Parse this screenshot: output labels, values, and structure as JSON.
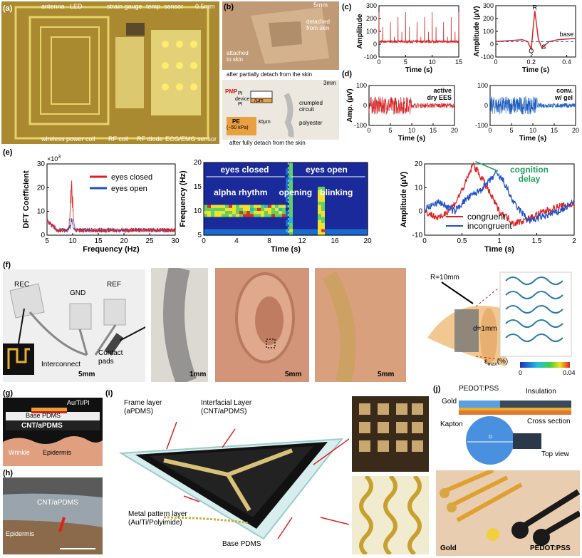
{
  "panel_a": {
    "label": "(a)",
    "callouts": [
      "antenna",
      "LED",
      "strain gauge",
      "temp. sensor",
      "0.5mm",
      "wireless power coil",
      "RF coil",
      "RF diode",
      "ECG/EMG sensor"
    ]
  },
  "panel_b": {
    "label": "(b)",
    "scale_top": "5mm",
    "detached": "detached\nfrom skin",
    "attached": "attached\nto skin",
    "caption_top": "after partially detach from the skin",
    "scale_bot": "3mm",
    "pmp": "PMP",
    "pi_top": "PI",
    "device": "device",
    "pi_bot": "PI",
    "t7": "7μm",
    "t30": "30μm",
    "pe": "PE",
    "pe_mod": "(~50 kPa)",
    "crumpled": "crumpled\ncircuit",
    "polyester": "polyester",
    "caption_bot": "after fully detach from the skin"
  },
  "panel_c": {
    "label": "(c)"
  },
  "panel_d": {
    "label": "(d)",
    "left_note": "active\ndry EES",
    "right_note": "conv.\nw/ gel"
  },
  "panel_e": {
    "label": "(e)",
    "spec_title": "",
    "spec_lbl_closed": "eyes closed",
    "spec_lbl_open": "eyes open",
    "spec_alpha": "alpha rhythm",
    "spec_opening": "opening",
    "spec_blinking": "blinking",
    "erp_annot": "cognition\ndelay"
  },
  "panel_f": {
    "label": "(f)",
    "rec": "REC",
    "gnd": "GND",
    "ref": "REF",
    "contact": "Contact\npads",
    "interconnect": "Interconnect",
    "s1": "5mm",
    "s2": "1mm",
    "s3": "5mm",
    "s4": "5mm",
    "r": "R=10mm",
    "d": "d=1mm",
    "emax": "ε",
    "emax_sub": "max",
    "emax_unit": "(%)",
    "cb_min": "0",
    "cb_max": "0.04"
  },
  "panel_g": {
    "label": "(g)",
    "base": "Base PDMS",
    "metal": "Au/Ti/PI",
    "cnt": "CNT/aPDMS",
    "wrinkle": "Wrinkle",
    "epidermis": "Epidermis"
  },
  "panel_h": {
    "label": "(h)",
    "cnt": "CNT/aPDMS",
    "epidermis": "Epidermis"
  },
  "panel_i": {
    "label": "(i)",
    "frame": "Frame layer\n(aPDMS)",
    "interfacial": "Interfacial Layer\n(CNT/aPDMS)",
    "metal": "Metal pattern layer\n(Au/Ti/Polyimide)",
    "base": "Base PDMS"
  },
  "panel_j": {
    "label": "(j)",
    "pedot": "PEDOT:PSS",
    "insulation": "Insulation",
    "gold": "Gold",
    "kapton": "Kapton",
    "cross": "Cross section",
    "top": "Top view",
    "diam": "D",
    "photo_gold": "Gold",
    "photo_pedot": "PEDOT:PSS"
  },
  "chart_data": [
    {
      "id": "c_left",
      "type": "line",
      "title": "",
      "xlabel": "Time (s)",
      "ylabel": "Amplitude",
      "xlim": [
        0,
        15
      ],
      "ylim": [
        -100,
        300
      ],
      "xticks": [
        0,
        5,
        10,
        15
      ],
      "yticks": [
        -100,
        0,
        100,
        200,
        300
      ],
      "series": [
        {
          "color": "#d62728",
          "peaks_per_15s": 21,
          "peak_value": 250,
          "baseline": 20
        }
      ]
    },
    {
      "id": "c_right",
      "type": "line",
      "title": "",
      "xlabel": "Time (s)",
      "ylabel": "Amplitude (μV)",
      "xlim": [
        0,
        0.45
      ],
      "ylim": [
        -100,
        300
      ],
      "xticks": [
        0.0,
        0.2,
        0.4
      ],
      "yticks": [
        -100,
        0,
        100,
        200,
        300
      ],
      "annotations": [
        "R",
        "Q",
        "S",
        "base"
      ],
      "series": [
        {
          "color": "#d62728",
          "x": [
            0,
            0.05,
            0.1,
            0.15,
            0.18,
            0.2,
            0.21,
            0.22,
            0.24,
            0.26,
            0.3,
            0.35,
            0.4,
            0.45
          ],
          "y": [
            20,
            25,
            30,
            35,
            20,
            -40,
            120,
            260,
            40,
            -30,
            20,
            35,
            40,
            45
          ]
        }
      ],
      "baseline": 20
    },
    {
      "id": "d_left",
      "type": "line",
      "title": "",
      "xlabel": "Time (s)",
      "ylabel": "Amp. (μV)",
      "xlim": [
        0,
        20
      ],
      "ylim": [
        -100,
        100
      ],
      "xticks": [
        0,
        5,
        10,
        15,
        20
      ],
      "yticks": [
        -100,
        0,
        100
      ],
      "series": [
        {
          "color": "#d62728",
          "burst_intervals": [
            [
              0,
              10
            ]
          ]
        }
      ]
    },
    {
      "id": "d_right",
      "type": "line",
      "title": "",
      "xlabel": "Time (s)",
      "ylabel": "",
      "xlim": [
        0,
        20
      ],
      "ylim": [
        -100,
        100
      ],
      "xticks": [
        0,
        5,
        10,
        15,
        20
      ],
      "yticks": [
        -100,
        0,
        100
      ],
      "series": [
        {
          "color": "#1f5fbf",
          "burst_intervals": [
            [
              0,
              11
            ]
          ]
        }
      ]
    },
    {
      "id": "e_left",
      "type": "line",
      "title": "",
      "xlabel": "Frequency (Hz)",
      "ylabel": "DFT Coefficient",
      "xlim": [
        5,
        30
      ],
      "ylim": [
        0,
        30
      ],
      "y_multiplier": "×10",
      "y_multiplier_exp": "3",
      "xticks": [
        5,
        10,
        15,
        20,
        25,
        30
      ],
      "yticks": [
        0,
        10,
        20,
        30
      ],
      "legend_position": "top-right",
      "series": [
        {
          "name": "eyes closed",
          "color": "#e02020",
          "peak_x": 9.8,
          "peak_y": 22
        },
        {
          "name": "eyes open",
          "color": "#2050c8",
          "peak_x": 9.8,
          "peak_y": 5
        }
      ]
    },
    {
      "id": "e_mid",
      "type": "heatmap",
      "title": "",
      "xlabel": "Time (s)",
      "ylabel": "Frequency (Hz)",
      "xlim": [
        0,
        20
      ],
      "ylim": [
        5,
        20
      ],
      "xticks": [
        0,
        4,
        8,
        12,
        16,
        20
      ],
      "yticks": [
        5,
        10,
        15,
        20
      ]
    },
    {
      "id": "e_right",
      "type": "line",
      "title": "",
      "xlabel": "Time (s)",
      "ylabel": "Amplitude (μV)",
      "xlim": [
        0,
        2.0
      ],
      "ylim": [
        -10,
        20
      ],
      "xticks": [
        0.0,
        0.5,
        1.0,
        1.5,
        2.0
      ],
      "yticks": [
        -10,
        0,
        10,
        20
      ],
      "legend_position": "bottom-center",
      "series": [
        {
          "name": "congruent",
          "color": "#e02020",
          "x": [
            0,
            0.2,
            0.4,
            0.55,
            0.65,
            0.8,
            1.0,
            1.2,
            1.4,
            1.6,
            1.8,
            2.0
          ],
          "y": [
            0,
            -3,
            3,
            12,
            20,
            12,
            0,
            -5,
            -3,
            0,
            2,
            3
          ]
        },
        {
          "name": "incongruent",
          "color": "#2050c8",
          "x": [
            0,
            0.2,
            0.4,
            0.55,
            0.7,
            0.85,
            0.95,
            1.05,
            1.2,
            1.4,
            1.6,
            1.8,
            2.0
          ],
          "y": [
            1,
            4,
            0,
            5,
            8,
            12,
            16,
            13,
            3,
            -4,
            -2,
            0,
            4
          ]
        }
      ],
      "annotation": "cognition delay"
    }
  ]
}
